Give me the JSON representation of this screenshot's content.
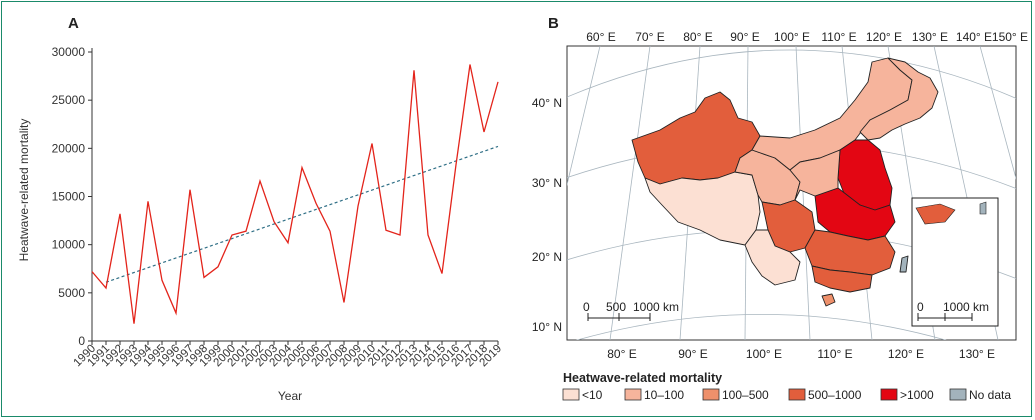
{
  "panel_a": {
    "label": "A"
  },
  "panel_b": {
    "label": "B",
    "top_lon_labels": [
      "60° E",
      "70° E",
      "80° E",
      "90° E",
      "100° E",
      "110° E",
      "120° E",
      "130° E",
      "140° E",
      "150° E"
    ],
    "bottom_lon_labels": [
      "80° E",
      "90° E",
      "100° E",
      "110° E",
      "120° E",
      "130° E"
    ],
    "lat_labels": [
      "40° N",
      "30° N",
      "20° N",
      "10° N"
    ],
    "scale_bar": {
      "ticks": [
        "0",
        "500",
        "1000 km"
      ]
    },
    "inset_scale_bar": {
      "ticks": [
        "0",
        "1000 km"
      ]
    },
    "legend": {
      "title": "Heatwave-related mortality",
      "items": [
        {
          "label": "<10",
          "color": "#fce0d3"
        },
        {
          "label": "10–100",
          "color": "#f6b49c"
        },
        {
          "label": "100–500",
          "color": "#ee906b"
        },
        {
          "label": "500–1000",
          "color": "#e25e3c"
        },
        {
          "label": ">1000",
          "color": "#e30613"
        },
        {
          "label": "No data",
          "color": "#a3b3bc"
        }
      ]
    }
  },
  "chart_data": [
    {
      "type": "line",
      "title": "",
      "xlabel": "Year",
      "ylabel": "Heatwave-related mortality",
      "ylim": [
        0,
        30000
      ],
      "yticks": [
        0,
        5000,
        10000,
        15000,
        20000,
        25000,
        30000
      ],
      "ytick_labels": [
        "0",
        "5000",
        "10000",
        "15000",
        "20000",
        "25000",
        "30000"
      ],
      "x": [
        1990,
        1991,
        1992,
        1993,
        1994,
        1995,
        1996,
        1997,
        1998,
        1999,
        2000,
        2001,
        2002,
        2003,
        2004,
        2005,
        2006,
        2007,
        2008,
        2009,
        2010,
        2011,
        2012,
        2013,
        2014,
        2015,
        2016,
        2017,
        2018,
        2019
      ],
      "xtick_labels": [
        "1990",
        "1991",
        "1992",
        "1993",
        "1994",
        "1995",
        "1996",
        "1997",
        "1998",
        "1999",
        "2000",
        "2001",
        "2002",
        "2003",
        "2004",
        "2005",
        "2006",
        "2007",
        "2008",
        "2009",
        "2010",
        "2011",
        "2012",
        "2013",
        "2014",
        "2015",
        "2016",
        "2017",
        "2018",
        "2019"
      ],
      "series": [
        {
          "values": [
            7200,
            5500,
            13200,
            1800,
            14500,
            6300,
            2900,
            15700,
            6600,
            7700,
            11000,
            11400,
            16600,
            12400,
            10200,
            18000,
            14300,
            11400,
            4000,
            14000,
            20500,
            11500,
            11000,
            28100,
            11000,
            7000,
            18300,
            28700,
            21700,
            26900
          ],
          "color": "#e3241b",
          "style": "solid"
        },
        {
          "trend": [
            6100,
            20200
          ],
          "trend_x": [
            1991,
            2019
          ],
          "color": "#2f6f86",
          "style": "dashed"
        }
      ],
      "grid": false
    },
    {
      "type": "map",
      "title": "",
      "legend_title": "Heatwave-related mortality",
      "categories": [
        "<10",
        "10–100",
        "100–500",
        "500–1000",
        ">1000",
        "No data"
      ]
    }
  ]
}
